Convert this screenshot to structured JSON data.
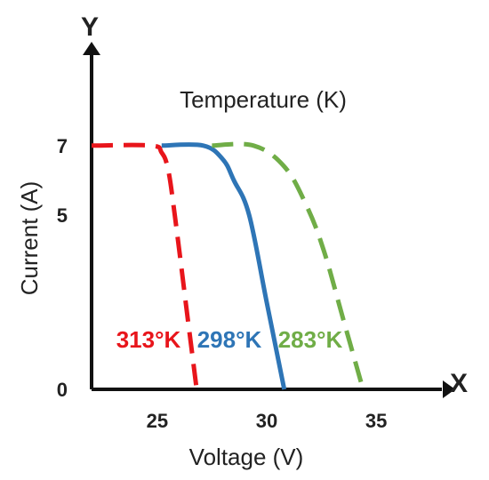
{
  "chart_data": {
    "type": "line",
    "title": "",
    "xlabel": "Voltage (V)",
    "ylabel": "Current (A)",
    "x_axis_letter": "X",
    "y_axis_letter": "Y",
    "annotation": "Temperature (K)",
    "xlim": [
      22.0,
      38.0
    ],
    "ylim": [
      0,
      9.6
    ],
    "x_ticks": [
      {
        "value": 25,
        "label": "25"
      },
      {
        "value": 30,
        "label": "30"
      },
      {
        "value": 35,
        "label": "35"
      }
    ],
    "y_ticks": [
      {
        "value": 0,
        "label": "0"
      },
      {
        "value": 5,
        "label": "5"
      },
      {
        "value": 7,
        "label": "7"
      }
    ],
    "grid": false,
    "legend": "none",
    "series": [
      {
        "name": "313°K",
        "color": "#e8151b",
        "dashed": true,
        "points": [
          [
            22.0,
            7.0
          ],
          [
            24.7,
            7.0
          ],
          [
            25.2,
            6.8
          ],
          [
            25.5,
            6.3
          ],
          [
            25.8,
            5.0
          ],
          [
            26.4,
            2.0
          ],
          [
            26.8,
            0.0
          ]
        ]
      },
      {
        "name": "298°K",
        "color": "#2e75b6",
        "dashed": false,
        "points": [
          [
            25.2,
            7.0
          ],
          [
            27.1,
            7.0
          ],
          [
            28.0,
            6.6
          ],
          [
            28.5,
            6.0
          ],
          [
            29.2,
            5.0
          ],
          [
            30.0,
            2.5
          ],
          [
            30.8,
            0.0
          ]
        ]
      },
      {
        "name": "283°K",
        "color": "#70ad47",
        "dashed": true,
        "points": [
          [
            27.5,
            7.0
          ],
          [
            29.4,
            7.0
          ],
          [
            30.8,
            6.4
          ],
          [
            31.8,
            5.3
          ],
          [
            32.6,
            4.0
          ],
          [
            33.5,
            2.0
          ],
          [
            34.4,
            0.0
          ]
        ]
      }
    ]
  }
}
